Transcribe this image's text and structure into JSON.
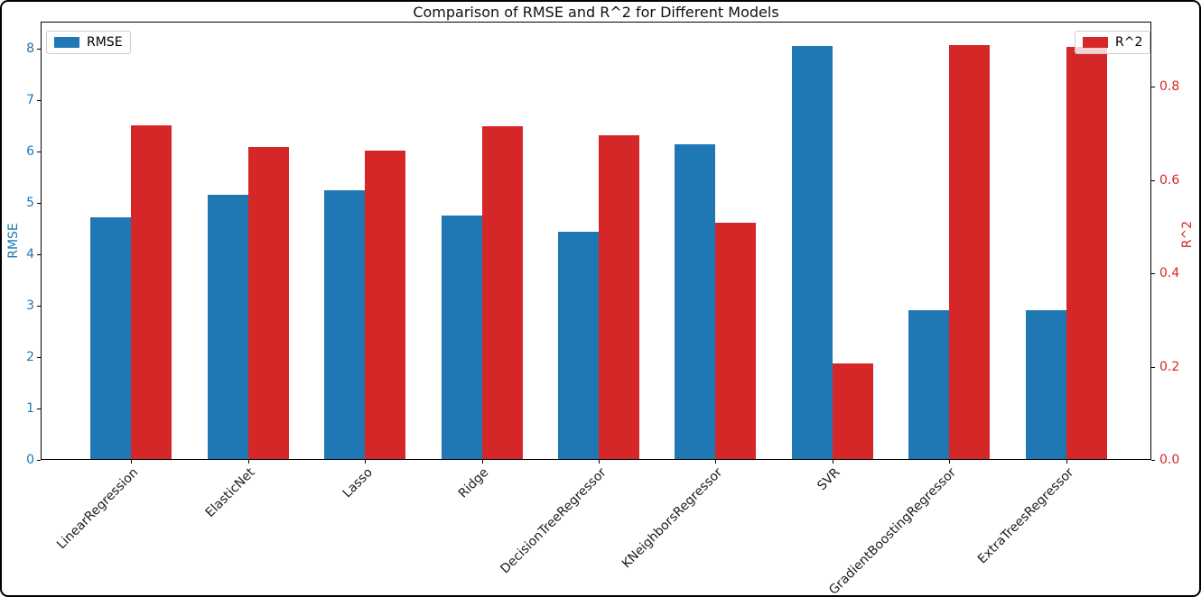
{
  "chart_data": {
    "type": "bar",
    "title": "Comparison of RMSE and R^2 for Different Models",
    "categories": [
      "LinearRegression",
      "ElasticNet",
      "Lasso",
      "Ridge",
      "DecisionTreeRegressor",
      "KNeighborsRegressor",
      "SVR",
      "GradientBoostingRegressor",
      "ExtraTreesRegressor"
    ],
    "series": [
      {
        "name": "RMSE",
        "axis": "left",
        "color": "#1f77b4",
        "values": [
          4.72,
          5.15,
          5.24,
          4.75,
          4.43,
          6.13,
          8.05,
          2.91,
          2.91
        ]
      },
      {
        "name": "R^2",
        "axis": "right",
        "color": "#d62728",
        "values": [
          0.718,
          0.672,
          0.663,
          0.715,
          0.697,
          0.509,
          0.207,
          0.889,
          0.886
        ]
      }
    ],
    "left_axis": {
      "label": "RMSE",
      "color": "#1f77b4",
      "ticks": [
        0,
        1,
        2,
        3,
        4,
        5,
        6,
        7,
        8
      ],
      "max": 8.52
    },
    "right_axis": {
      "label": "R^2",
      "color": "#d62728",
      "ticks": [
        "0.0",
        "0.2",
        "0.4",
        "0.6",
        "0.8"
      ],
      "max": 0.94
    },
    "legend_positions": [
      "upper left",
      "upper right"
    ],
    "bar_width_fraction": 0.35,
    "grid": false,
    "xlabel": ""
  }
}
